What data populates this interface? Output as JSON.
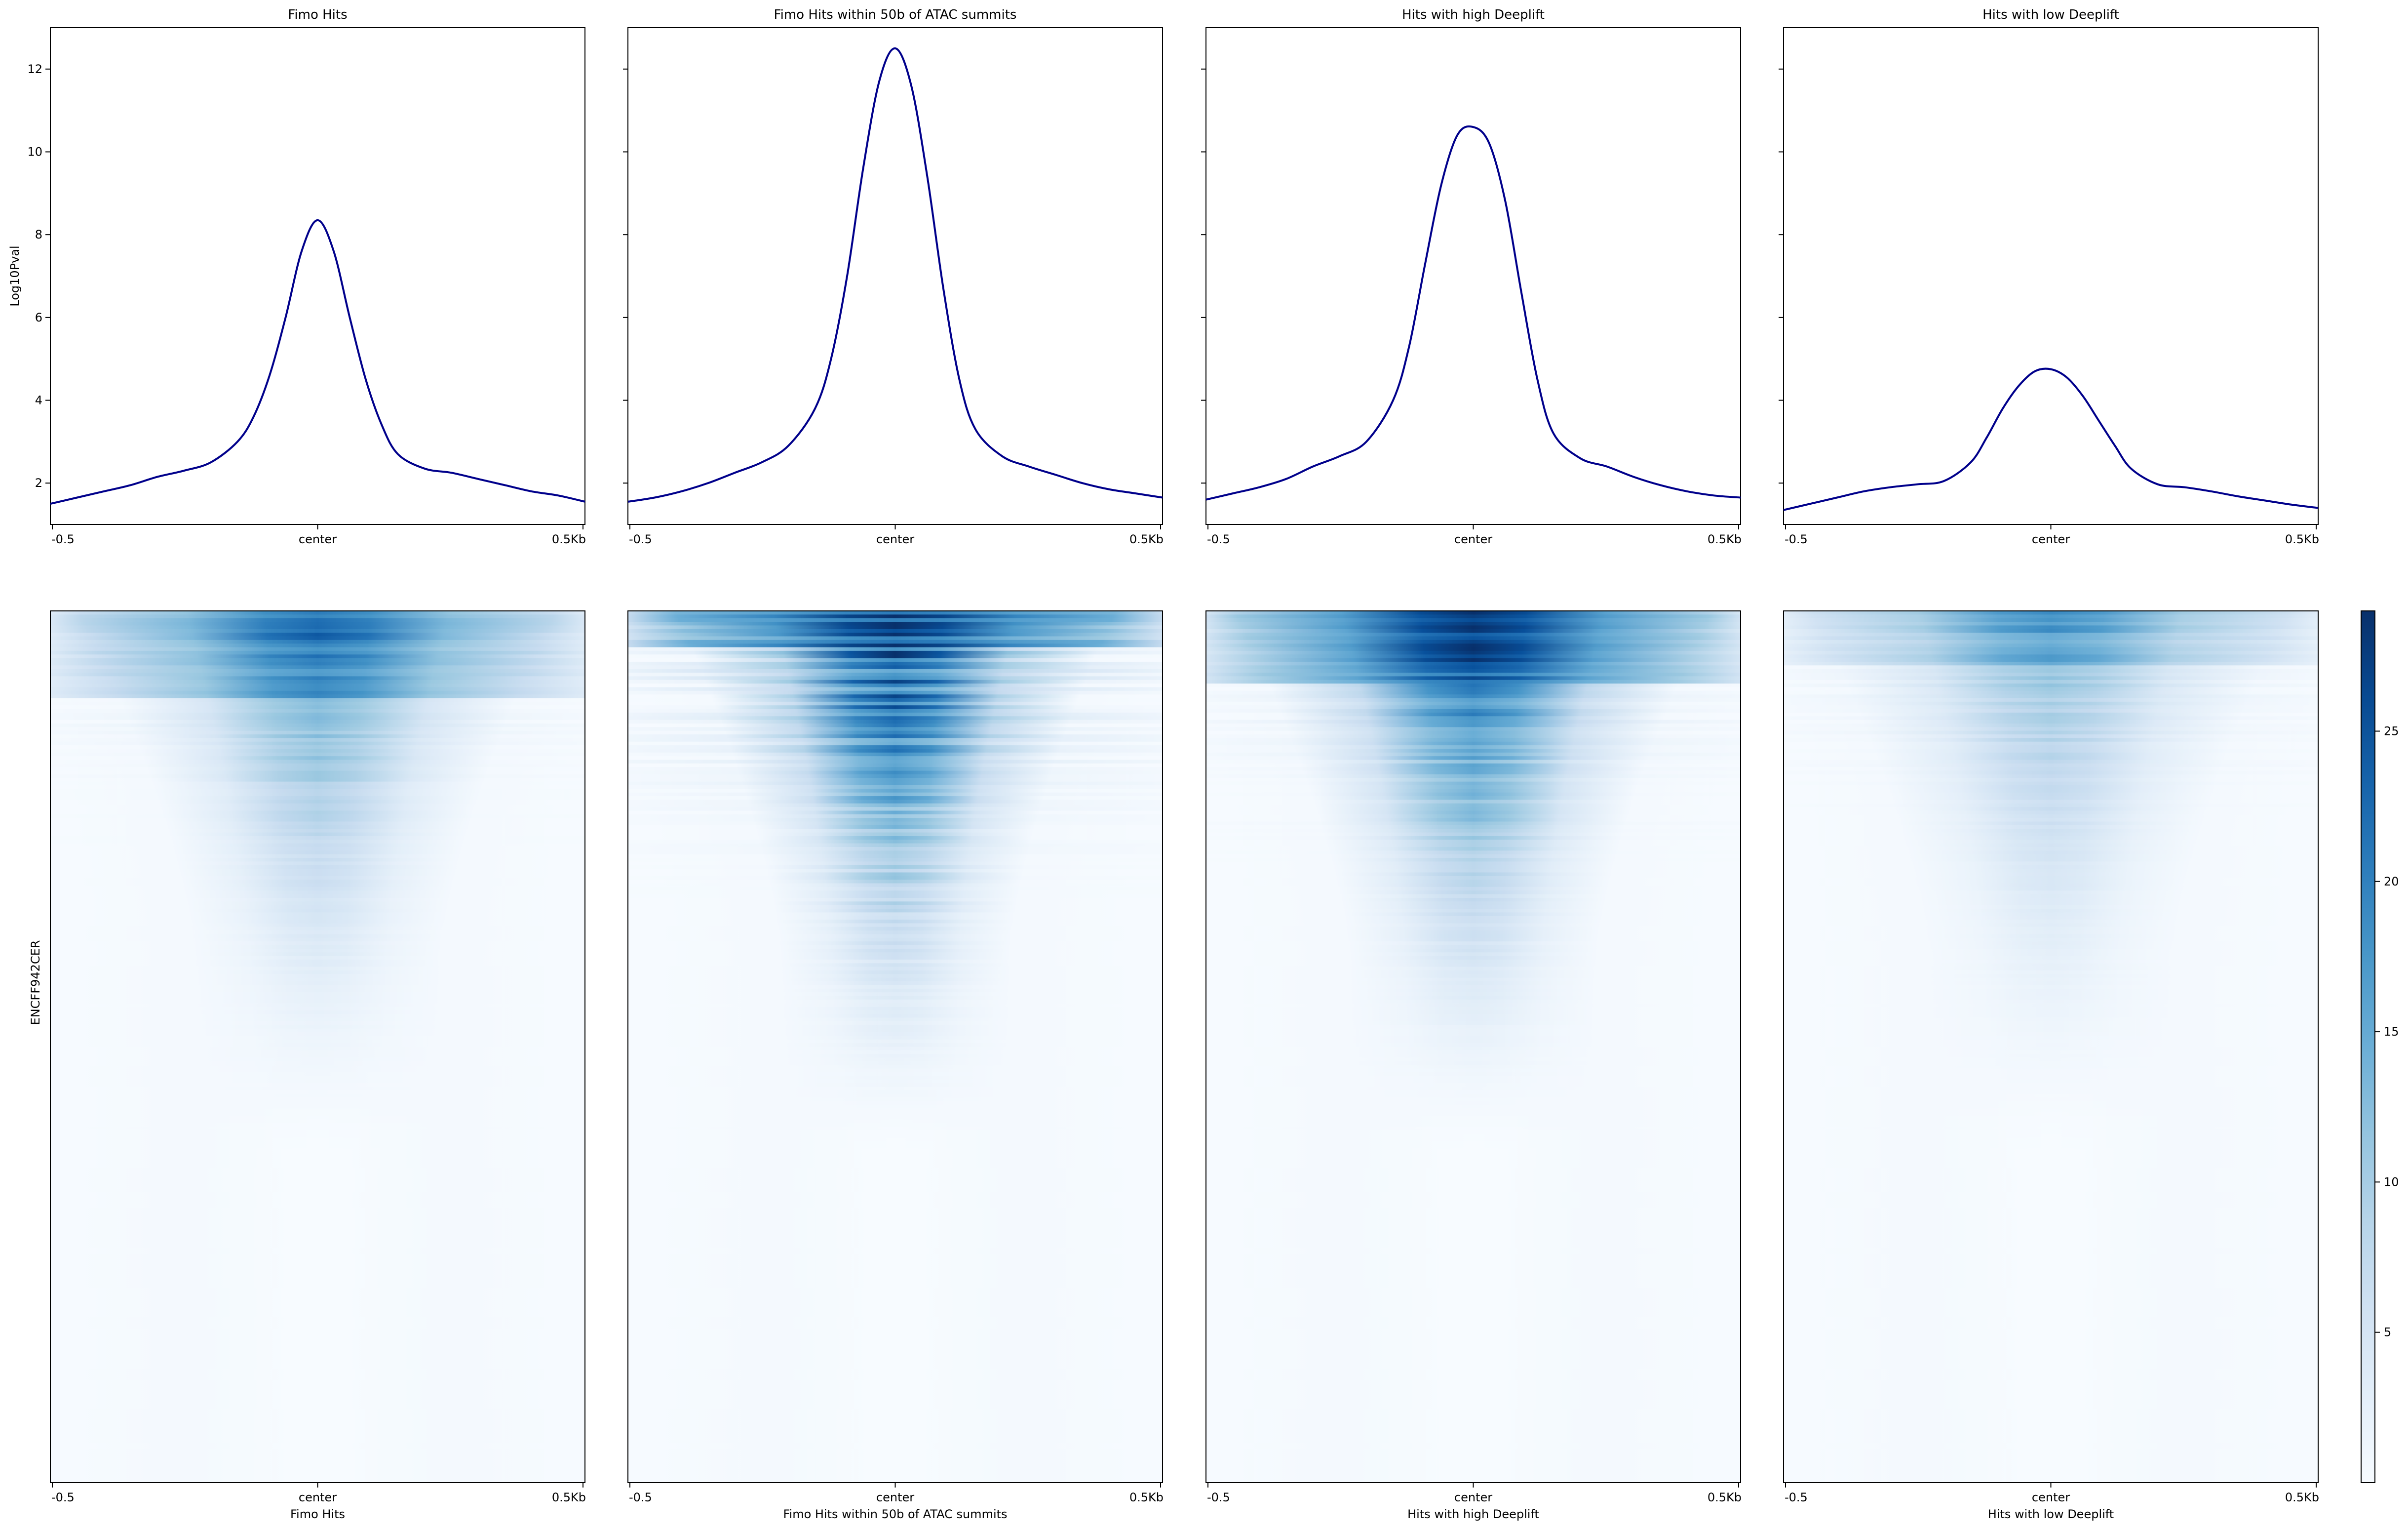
{
  "figure": {
    "title": "",
    "colors": {
      "profile_line": "#00008b",
      "heatmap_low": "#f7fbff",
      "heatmap_high": "#08306b",
      "axes": "#000000"
    }
  },
  "chart_data": [
    {
      "type": "line",
      "panel": "Fimo Hits",
      "title": "Fimo Hits",
      "ylabel": "Log10Pval",
      "ylim": [
        1.0,
        13.0
      ],
      "yticks": [
        "2",
        "4",
        "6",
        "8",
        "10",
        "12"
      ],
      "xticks": [
        "-0.5",
        "center",
        "0.5Kb"
      ],
      "x": [
        -0.5,
        -0.45,
        -0.4,
        -0.35,
        -0.3,
        -0.25,
        -0.2,
        -0.15,
        -0.12,
        -0.09,
        -0.06,
        -0.03,
        0.0,
        0.03,
        0.06,
        0.09,
        0.12,
        0.15,
        0.2,
        0.25,
        0.3,
        0.35,
        0.4,
        0.45,
        0.5
      ],
      "y": [
        1.5,
        1.65,
        1.8,
        1.95,
        2.15,
        2.3,
        2.5,
        3.0,
        3.6,
        4.6,
        6.0,
        7.6,
        8.35,
        7.6,
        6.0,
        4.5,
        3.4,
        2.7,
        2.35,
        2.25,
        2.1,
        1.95,
        1.8,
        1.7,
        1.55
      ]
    },
    {
      "type": "line",
      "panel": "Fimo Hits within 50b of ATAC summits",
      "title": "Fimo Hits within 50b of ATAC summits",
      "ylim": [
        1.0,
        13.0
      ],
      "xticks": [
        "-0.5",
        "center",
        "0.5Kb"
      ],
      "x": [
        -0.5,
        -0.45,
        -0.4,
        -0.35,
        -0.3,
        -0.25,
        -0.2,
        -0.15,
        -0.12,
        -0.09,
        -0.06,
        -0.03,
        0.0,
        0.03,
        0.06,
        0.09,
        0.12,
        0.15,
        0.2,
        0.25,
        0.3,
        0.35,
        0.4,
        0.45,
        0.5
      ],
      "y": [
        1.55,
        1.65,
        1.8,
        2.0,
        2.25,
        2.5,
        2.9,
        3.8,
        5.0,
        7.0,
        9.6,
        11.7,
        12.5,
        11.6,
        9.4,
        6.7,
        4.5,
        3.3,
        2.65,
        2.4,
        2.2,
        2.0,
        1.85,
        1.75,
        1.65
      ]
    },
    {
      "type": "line",
      "panel": "Hits with high Deeplift",
      "title": "Hits with high Deeplift",
      "ylim": [
        1.0,
        13.0
      ],
      "xticks": [
        "-0.5",
        "center",
        "0.5Kb"
      ],
      "x": [
        -0.5,
        -0.45,
        -0.4,
        -0.35,
        -0.3,
        -0.25,
        -0.2,
        -0.15,
        -0.12,
        -0.09,
        -0.06,
        -0.03,
        0.0,
        0.03,
        0.06,
        0.09,
        0.12,
        0.15,
        0.2,
        0.25,
        0.3,
        0.35,
        0.4,
        0.45,
        0.5
      ],
      "y": [
        1.6,
        1.75,
        1.9,
        2.1,
        2.4,
        2.65,
        3.0,
        4.0,
        5.3,
        7.3,
        9.2,
        10.4,
        10.6,
        10.2,
        8.8,
        6.6,
        4.5,
        3.2,
        2.6,
        2.4,
        2.15,
        1.95,
        1.8,
        1.7,
        1.65
      ]
    },
    {
      "type": "line",
      "panel": "Hits with low Deeplift",
      "title": "Hits with low Deeplift",
      "ylim": [
        1.0,
        13.0
      ],
      "xticks": [
        "-0.5",
        "center",
        "0.5Kb"
      ],
      "x": [
        -0.5,
        -0.45,
        -0.4,
        -0.35,
        -0.3,
        -0.25,
        -0.2,
        -0.15,
        -0.12,
        -0.09,
        -0.06,
        -0.03,
        0.0,
        0.03,
        0.06,
        0.09,
        0.12,
        0.15,
        0.2,
        0.25,
        0.3,
        0.35,
        0.4,
        0.45,
        0.5
      ],
      "y": [
        1.35,
        1.5,
        1.65,
        1.8,
        1.9,
        1.97,
        2.05,
        2.5,
        3.1,
        3.8,
        4.35,
        4.7,
        4.75,
        4.55,
        4.1,
        3.5,
        2.9,
        2.35,
        1.97,
        1.9,
        1.8,
        1.68,
        1.58,
        1.48,
        1.4
      ]
    },
    {
      "type": "heatmap",
      "panel": "Fimo Hits",
      "ylabel": "ENCFF942CER",
      "xlabel": "Fimo Hits",
      "xticks": [
        "-0.5",
        "center",
        "0.5Kb"
      ],
      "colormap": "Blues",
      "peak_intensity": 0.62,
      "core_width": 0.13,
      "top_band_rows": 0.1,
      "row_noise": 0.35
    },
    {
      "type": "heatmap",
      "panel": "Fimo Hits within 50b of ATAC summits",
      "xlabel": "Fimo Hits within 50b of ATAC summits",
      "xticks": [
        "-0.5",
        "center",
        "0.5Kb"
      ],
      "colormap": "Blues",
      "peak_intensity": 0.95,
      "core_width": 0.12,
      "top_band_rows": 0.04,
      "row_noise": 0.75
    },
    {
      "type": "heatmap",
      "panel": "Hits with high Deeplift",
      "xlabel": "Hits with high Deeplift",
      "xticks": [
        "-0.5",
        "center",
        "0.5Kb"
      ],
      "colormap": "Blues",
      "peak_intensity": 0.85,
      "core_width": 0.13,
      "top_band_rows": 0.08,
      "row_noise": 0.45
    },
    {
      "type": "heatmap",
      "panel": "Hits with low Deeplift",
      "xlabel": "Hits with low Deeplift",
      "xticks": [
        "-0.5",
        "center",
        "0.5Kb"
      ],
      "colormap": "Blues",
      "peak_intensity": 0.45,
      "core_width": 0.13,
      "top_band_rows": 0.06,
      "row_noise": 0.3
    },
    {
      "type": "colorbar",
      "colormap": "Blues",
      "vmin": 0,
      "vmax": 29,
      "ticks": [
        5,
        10,
        15,
        20,
        25
      ],
      "tick_labels": [
        "5",
        "10",
        "15",
        "20",
        "25"
      ]
    }
  ]
}
